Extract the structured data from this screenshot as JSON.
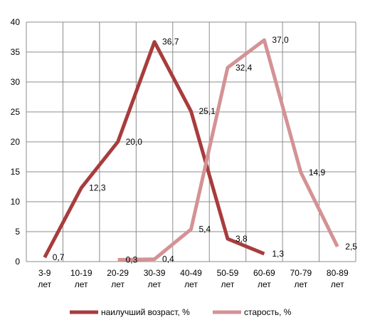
{
  "chart_data": {
    "type": "line",
    "categories": [
      [
        "3-9",
        "лет"
      ],
      [
        "10-19",
        "лет"
      ],
      [
        "20-29",
        "лет"
      ],
      [
        "30-39",
        "лет"
      ],
      [
        "40-49",
        "лет"
      ],
      [
        "50-59",
        "лет"
      ],
      [
        "60-69",
        "лет"
      ],
      [
        "70-79",
        "лет"
      ],
      [
        "80-89",
        "лет"
      ]
    ],
    "series": [
      {
        "name": "наилучший возраст, %",
        "color": "#a83c3c",
        "values": [
          0.7,
          12.3,
          20.0,
          36.7,
          25.1,
          3.8,
          1.3,
          null,
          null
        ],
        "labels": [
          "0,7",
          "12,3",
          "20,0",
          "36,7",
          "25,1",
          "3,8",
          "1,3",
          null,
          null
        ]
      },
      {
        "name": "старость, %",
        "color": "#d49294",
        "values": [
          null,
          null,
          0.3,
          0.4,
          5.4,
          32.4,
          37.0,
          14.9,
          2.5
        ],
        "labels": [
          null,
          null,
          "0,3",
          "0,4",
          "5,4",
          "32,4",
          "37,0",
          "14,9",
          "2,5"
        ]
      }
    ],
    "ylim": [
      0,
      40
    ],
    "yticks": [
      0,
      5,
      10,
      15,
      20,
      25,
      30,
      35,
      40
    ],
    "grid": true,
    "legend": "bottom",
    "title": "",
    "xlabel": "",
    "ylabel": ""
  }
}
